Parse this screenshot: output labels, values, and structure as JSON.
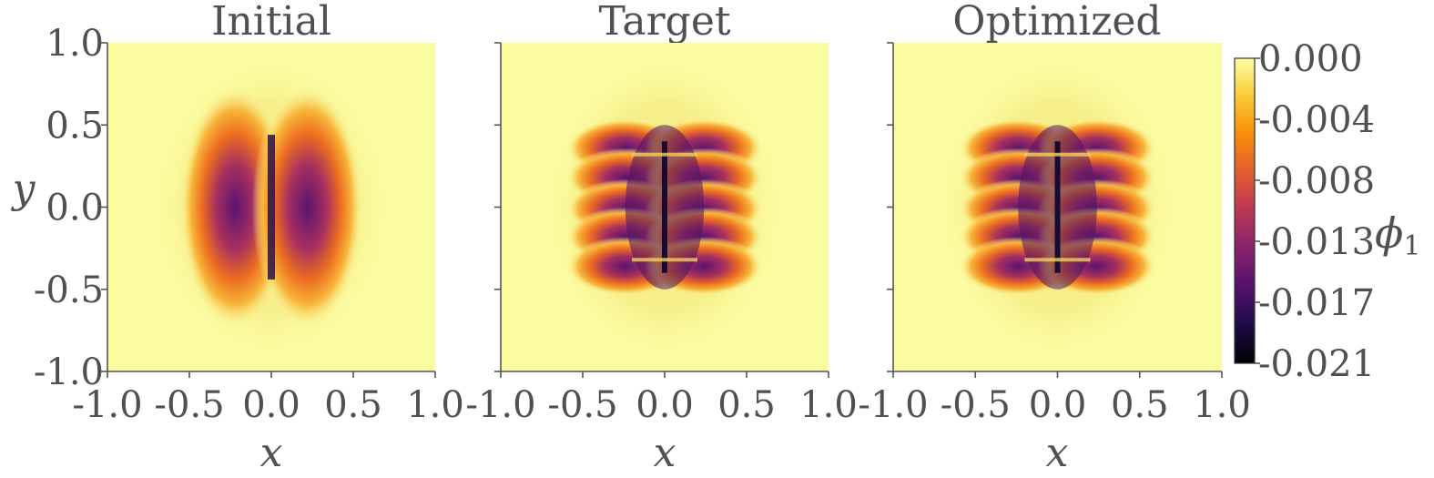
{
  "chart_data": [
    {
      "type": "heatmap",
      "title": "Initial",
      "xlabel": "x",
      "ylabel": "y",
      "xlim": [
        -1.0,
        1.0
      ],
      "ylim": [
        -1.0,
        1.0
      ],
      "x_ticks": [
        "-1.0",
        "-0.5",
        "0.0",
        "0.5",
        "1.0"
      ],
      "y_ticks": [
        "1.0",
        "0.5",
        "0.0",
        "-0.5",
        "-1.0"
      ],
      "field_pattern": "single elongated negative lobe pair around a vertical slit at x=0, spanning y from -0.5 to 0.5"
    },
    {
      "type": "heatmap",
      "title": "Target",
      "xlabel": "x",
      "ylabel": "",
      "xlim": [
        -1.0,
        1.0
      ],
      "ylim": [
        -1.0,
        1.0
      ],
      "x_ticks": [
        "-1.0",
        "-0.5",
        "0.0",
        "0.5",
        "1.0"
      ],
      "y_ticks": [
        "1.0",
        "0.5",
        "0.0",
        "-0.5",
        "-1.0"
      ],
      "field_pattern": "banded negative field around a segmented vertical slit at x=0 with horizontal cracks near y=±0.3"
    },
    {
      "type": "heatmap",
      "title": "Optimized",
      "xlabel": "x",
      "ylabel": "",
      "xlim": [
        -1.0,
        1.0
      ],
      "ylim": [
        -1.0,
        1.0
      ],
      "x_ticks": [
        "-1.0",
        "-0.5",
        "0.0",
        "0.5",
        "1.0"
      ],
      "y_ticks": [
        "1.0",
        "0.5",
        "0.0",
        "-0.5",
        "-1.0"
      ],
      "field_pattern": "banded negative field closely matching target"
    }
  ],
  "colorbar": {
    "label_main": "ϕ",
    "label_sub": "1",
    "colormap": "inferno",
    "range": [
      -0.021,
      0.0
    ],
    "ticks": [
      "0.000",
      "-0.004",
      "-0.008",
      "-0.013",
      "-0.017",
      "-0.021"
    ]
  }
}
